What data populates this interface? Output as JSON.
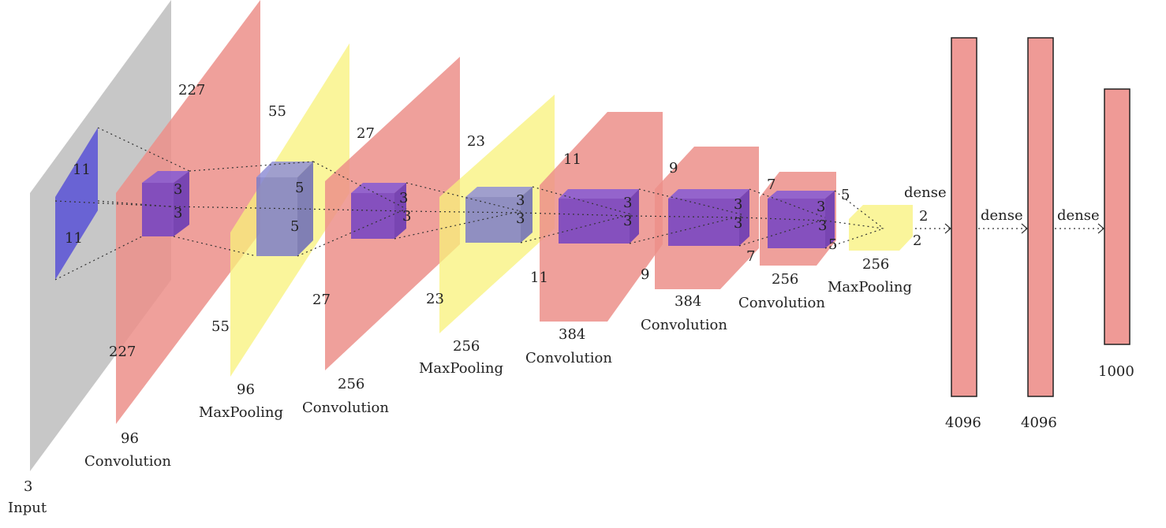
{
  "layers": [
    {
      "name": "input",
      "channels": "3",
      "label": "Input",
      "height": "",
      "width": "",
      "kernel_h": "11",
      "kernel_w": "11"
    },
    {
      "name": "conv1",
      "channels": "96",
      "label": "Convolution",
      "height": "227",
      "width": "227",
      "kernel_h": "3",
      "kernel_w": "3"
    },
    {
      "name": "pool1",
      "channels": "96",
      "label": "MaxPooling",
      "height": "55",
      "width": "55",
      "kernel_h": "5",
      "kernel_w": "5"
    },
    {
      "name": "conv2",
      "channels": "256",
      "label": "Convolution",
      "height": "27",
      "width": "27",
      "kernel_h": "3",
      "kernel_w": "3"
    },
    {
      "name": "pool2",
      "channels": "256",
      "label": "MaxPooling",
      "height": "23",
      "width": "23",
      "kernel_h": "3",
      "kernel_w": "3"
    },
    {
      "name": "conv3",
      "channels": "384",
      "label": "Convolution",
      "height": "11",
      "width": "11",
      "kernel_h": "3",
      "kernel_w": "3"
    },
    {
      "name": "conv4",
      "channels": "384",
      "label": "Convolution",
      "height": "9",
      "width": "9",
      "kernel_h": "3",
      "kernel_w": "3"
    },
    {
      "name": "conv5",
      "channels": "256",
      "label": "Convolution",
      "height": "7",
      "width": "7",
      "kernel_h": "3",
      "kernel_w": "3"
    },
    {
      "name": "pool3",
      "channels": "256",
      "label": "MaxPooling",
      "height": "5",
      "width": "5",
      "out_h": "2",
      "out_w": "2"
    }
  ],
  "dense": [
    {
      "label": "dense",
      "units": "4096"
    },
    {
      "label": "dense",
      "units": "4096"
    },
    {
      "label": "dense",
      "units": "1000"
    }
  ],
  "colors": {
    "input": "#bdbdbd",
    "conv": "#ec8f8a",
    "pool": "#f8f27a",
    "kernel": "#4a42d8",
    "dense": "#ef9a96"
  }
}
